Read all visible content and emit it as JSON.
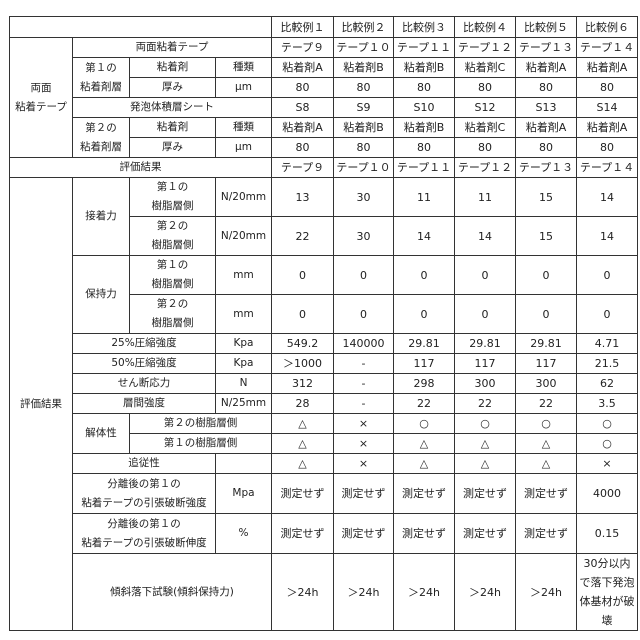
{
  "columns": [
    "比較例１",
    "比較例２",
    "比較例３",
    "比較例４",
    "比較例５",
    "比較例６"
  ],
  "labels": {
    "tape_group": "両面\n粘着テープ",
    "tape": "両面粘着テープ",
    "adh1": "第１の\n粘着剤層",
    "adh2": "第２の\n粘着剤層",
    "adhesive": "粘着剤",
    "type": "種類",
    "thickness": "厚み",
    "um": "μm",
    "foam": "発泡体積層シート",
    "eval": "評価結果",
    "eval_group": "評価結果",
    "peel": "接着力",
    "hold": "保持力",
    "resin1": "第１の\n樹脂層側",
    "resin2": "第２の\n樹脂層側",
    "n20": "N/20mm",
    "mm": "mm",
    "c25": "25%圧縮強度",
    "c50": "50%圧縮強度",
    "kpa": "Kpa",
    "shear": "せん断応力",
    "n": "N",
    "interlayer": "層間強度",
    "n25": "N/25mm",
    "dismantle": "解体性",
    "dis2": "第２の樹脂層側",
    "dis1": "第１の樹脂層側",
    "follow": "追従性",
    "tensile": "分離後の第１の\n粘着テープの引張破断強度",
    "mpa": "Mpa",
    "elong": "分離後の第１の\n粘着テープの引張破断伸度",
    "pct": "%",
    "incline": "傾斜落下試験(傾斜保持力)"
  },
  "rows": {
    "tape": [
      "テープ９",
      "テープ１０",
      "テープ１１",
      "テープ１２",
      "テープ１３",
      "テープ１４"
    ],
    "adh1_type": [
      "粘着剤A",
      "粘着剤B",
      "粘着剤B",
      "粘着剤C",
      "粘着剤A",
      "粘着剤A"
    ],
    "adh1_thick": [
      "80",
      "80",
      "80",
      "80",
      "80",
      "80"
    ],
    "foam": [
      "S8",
      "S9",
      "S10",
      "S12",
      "S13",
      "S14"
    ],
    "adh2_type": [
      "粘着剤A",
      "粘着剤B",
      "粘着剤B",
      "粘着剤C",
      "粘着剤A",
      "粘着剤A"
    ],
    "adh2_thick": [
      "80",
      "80",
      "80",
      "80",
      "80",
      "80"
    ],
    "eval": [
      "テープ９",
      "テープ１０",
      "テープ１１",
      "テープ１２",
      "テープ１３",
      "テープ１４"
    ],
    "peel1": [
      "13",
      "30",
      "11",
      "11",
      "15",
      "14"
    ],
    "peel2": [
      "22",
      "30",
      "14",
      "14",
      "15",
      "14"
    ],
    "hold1": [
      "0",
      "0",
      "0",
      "0",
      "0",
      "0"
    ],
    "hold2": [
      "0",
      "0",
      "0",
      "0",
      "0",
      "0"
    ],
    "c25": [
      "549.2",
      "140000",
      "29.81",
      "29.81",
      "29.81",
      "4.71"
    ],
    "c50": [
      "＞1000",
      "-",
      "117",
      "117",
      "117",
      "21.5"
    ],
    "shear": [
      "312",
      "-",
      "298",
      "300",
      "300",
      "62"
    ],
    "interlayer": [
      "28",
      "-",
      "22",
      "22",
      "22",
      "3.5"
    ],
    "dis2": [
      "△",
      "×",
      "○",
      "○",
      "○",
      "○"
    ],
    "dis1": [
      "△",
      "×",
      "△",
      "△",
      "△",
      "○"
    ],
    "follow": [
      "△",
      "×",
      "△",
      "△",
      "△",
      "×"
    ],
    "tensile": [
      "測定せず",
      "測定せず",
      "測定せず",
      "測定せず",
      "測定せず",
      "4000"
    ],
    "elong": [
      "測定せず",
      "測定せず",
      "測定せず",
      "測定せず",
      "測定せず",
      "0.15"
    ],
    "incline": [
      "＞24h",
      "＞24h",
      "＞24h",
      "＞24h",
      "＞24h",
      "30分以内で落下発泡体基材が破壊"
    ]
  }
}
